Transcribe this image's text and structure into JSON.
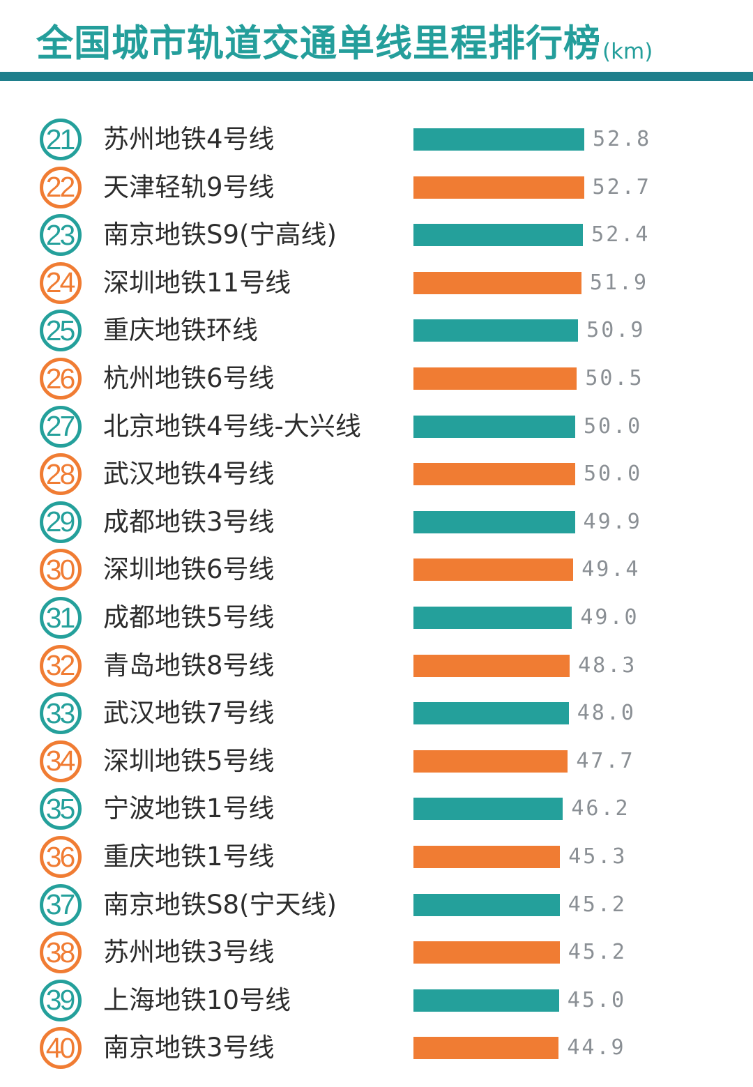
{
  "header": {
    "title": "全国城市轨道交通单线里程排行榜",
    "unit": "(km)"
  },
  "colors": {
    "title": "#249e9b",
    "rule": "#1f7f8c",
    "teal": "#24a09b",
    "orange": "#f07c33",
    "value_text": "#8a8f94",
    "name_text": "#2c2c2c"
  },
  "chart_data": {
    "type": "bar",
    "orientation": "horizontal",
    "title": "全国城市轨道交通单线里程排行榜",
    "unit": "km",
    "xlim": [
      0,
      52.8
    ],
    "grid": false,
    "ranks": [
      21,
      22,
      23,
      24,
      25,
      26,
      27,
      28,
      29,
      30,
      31,
      32,
      33,
      34,
      35,
      36,
      37,
      38,
      39,
      40
    ],
    "categories": [
      "苏州地铁4号线",
      "天津轻轨9号线",
      "南京地铁S9(宁高线)",
      "深圳地铁11号线",
      "重庆地铁环线",
      "杭州地铁6号线",
      "北京地铁4号线-大兴线",
      "武汉地铁4号线",
      "成都地铁3号线",
      "深圳地铁6号线",
      "成都地铁5号线",
      "青岛地铁8号线",
      "武汉地铁7号线",
      "深圳地铁5号线",
      "宁波地铁1号线",
      "重庆地铁1号线",
      "南京地铁S8(宁天线)",
      "苏州地铁3号线",
      "上海地铁10号线",
      "南京地铁3号线"
    ],
    "values": [
      52.8,
      52.7,
      52.4,
      51.9,
      50.9,
      50.5,
      50.0,
      50.0,
      49.9,
      49.4,
      49.0,
      48.3,
      48.0,
      47.7,
      46.2,
      45.3,
      45.2,
      45.2,
      45.0,
      44.9
    ],
    "value_labels": [
      "52.8",
      "52.7",
      "52.4",
      "51.9",
      "50.9",
      "50.5",
      "50.0",
      "50.0",
      "49.9",
      "49.4",
      "49.0",
      "48.3",
      "48.0",
      "47.7",
      "46.2",
      "45.3",
      "45.2",
      "45.2",
      "45.0",
      "44.9"
    ],
    "bar_colors": [
      "teal",
      "orange",
      "teal",
      "orange",
      "teal",
      "orange",
      "teal",
      "orange",
      "teal",
      "orange",
      "teal",
      "orange",
      "teal",
      "orange",
      "teal",
      "orange",
      "teal",
      "orange",
      "teal",
      "orange"
    ]
  }
}
